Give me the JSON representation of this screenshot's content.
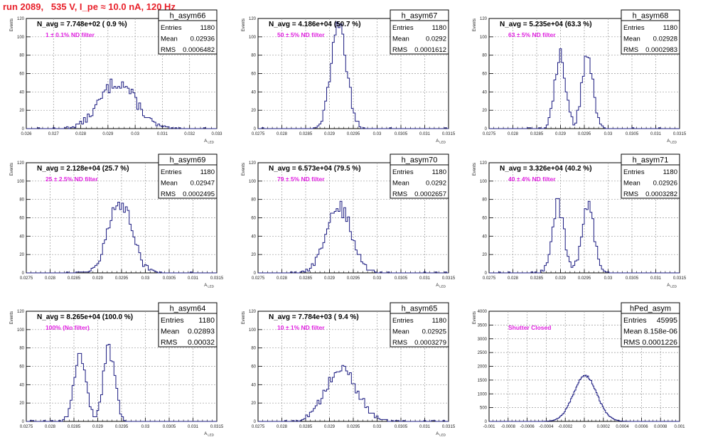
{
  "run_title": "run 2089,   535 V, I_pe ≈ 10.0 nA, 120 Hz",
  "colors": {
    "title": "#e8202a",
    "annotation": "#e020e0",
    "hist": "#1a1a80",
    "axis": "#000000",
    "grid": "#999999"
  },
  "chart_data": [
    {
      "type": "bar",
      "subtype": "histogram",
      "name": "h_asym66",
      "navg": "N_avg = 7.748e+02 ( 0.9 %)",
      "annotation": "1 ± 0.1% ND filter",
      "stats": {
        "entries_label": "Entries",
        "entries": "1180",
        "mean_label": "Mean",
        "mean": "0.02936",
        "rms_label": "RMS",
        "rms": "0.0006482"
      },
      "ylabel": "Events",
      "xlabel": "A_LED",
      "xlim": [
        0.026,
        0.033
      ],
      "ylim": [
        0,
        120
      ],
      "xticks": [
        "0.026",
        "0.027",
        "0.028",
        "0.029",
        "0.03",
        "0.031",
        "0.032",
        "0.033"
      ],
      "yticks": [
        "0",
        "20",
        "40",
        "60",
        "80",
        "100",
        "120"
      ],
      "mean": 0.02936,
      "rms": 0.0006482,
      "entries": 1180
    },
    {
      "type": "bar",
      "subtype": "histogram",
      "name": "h_asym67",
      "navg": "N_avg = 4.186e+04 (50.7 %)",
      "annotation": "50 ± 5% ND filter",
      "stats": {
        "entries_label": "Entries",
        "entries": "1180",
        "mean_label": "Mean",
        "mean": "0.0292",
        "rms_label": "RMS",
        "rms": "0.0001612"
      },
      "ylabel": "Events",
      "xlabel": "A_LED",
      "xlim": [
        0.0275,
        0.0315
      ],
      "ylim": [
        0,
        120
      ],
      "xticks": [
        "0.0275",
        "0.028",
        "0.0285",
        "0.029",
        "0.0295",
        "0.03",
        "0.0305",
        "0.031",
        "0.0315"
      ],
      "yticks": [
        "0",
        "20",
        "40",
        "60",
        "80",
        "100",
        "120"
      ],
      "mean": 0.0292,
      "rms": 0.0001612,
      "entries": 1180
    },
    {
      "type": "bar",
      "subtype": "histogram",
      "name": "h_asym68",
      "navg": "N_avg = 5.235e+04 (63.3 %)",
      "annotation": "63 ± 5% ND filter",
      "stats": {
        "entries_label": "Entries",
        "entries": "1180",
        "mean_label": "Mean",
        "mean": "0.02928",
        "rms_label": "RMS",
        "rms": "0.0002983"
      },
      "ylabel": "Events",
      "xlabel": "A_LED",
      "xlim": [
        0.0275,
        0.0315
      ],
      "ylim": [
        0,
        120
      ],
      "xticks": [
        "0.0275",
        "0.028",
        "0.0285",
        "0.029",
        "0.0295",
        "0.03",
        "0.0305",
        "0.031",
        "0.0315"
      ],
      "yticks": [
        "0",
        "20",
        "40",
        "60",
        "80",
        "100",
        "120"
      ],
      "mean": 0.02928,
      "rms": 0.0002983,
      "entries": 1180
    },
    {
      "type": "bar",
      "subtype": "histogram",
      "name": "h_asym69",
      "navg": "N_avg = 2.128e+04 (25.7 %)",
      "annotation": "25 ± 2.5% ND filter",
      "stats": {
        "entries_label": "Entries",
        "entries": "1180",
        "mean_label": "Mean",
        "mean": "0.02947",
        "rms_label": "RMS",
        "rms": "0.0002495"
      },
      "ylabel": "Events",
      "xlabel": "A_LED",
      "xlim": [
        0.0275,
        0.0315
      ],
      "ylim": [
        0,
        120
      ],
      "xticks": [
        "0.0275",
        "0.028",
        "0.0285",
        "0.029",
        "0.0295",
        "0.03",
        "0.0305",
        "0.031",
        "0.0315"
      ],
      "yticks": [
        "0",
        "20",
        "40",
        "60",
        "80",
        "100",
        "120"
      ],
      "mean": 0.02947,
      "rms": 0.0002495,
      "entries": 1180
    },
    {
      "type": "bar",
      "subtype": "histogram",
      "name": "h_asym70",
      "navg": "N_avg = 6.573e+04 (79.5 %)",
      "annotation": "79 ± 5% ND filter",
      "stats": {
        "entries_label": "Entries",
        "entries": "1180",
        "mean_label": "Mean",
        "mean": "0.0292",
        "rms_label": "RMS",
        "rms": "0.0002657"
      },
      "ylabel": "Events",
      "xlabel": "A_LED",
      "xlim": [
        0.0275,
        0.0315
      ],
      "ylim": [
        0,
        120
      ],
      "xticks": [
        "0.0275",
        "0.028",
        "0.0285",
        "0.029",
        "0.0295",
        "0.03",
        "0.0305",
        "0.031",
        "0.0315"
      ],
      "yticks": [
        "0",
        "20",
        "40",
        "60",
        "80",
        "100",
        "120"
      ],
      "mean": 0.0292,
      "rms": 0.0002657,
      "entries": 1180
    },
    {
      "type": "bar",
      "subtype": "histogram",
      "name": "h_asym71",
      "navg": "N_avg = 3.326e+04 (40.2 %)",
      "annotation": "40 ± 4% ND filter",
      "stats": {
        "entries_label": "Entries",
        "entries": "1180",
        "mean_label": "Mean",
        "mean": "0.02926",
        "rms_label": "RMS",
        "rms": "0.0003282"
      },
      "ylabel": "Events",
      "xlabel": "A_LED",
      "xlim": [
        0.0275,
        0.0315
      ],
      "ylim": [
        0,
        120
      ],
      "xticks": [
        "0.0275",
        "0.028",
        "0.0285",
        "0.029",
        "0.0295",
        "0.03",
        "0.0305",
        "0.031",
        "0.0315"
      ],
      "yticks": [
        "0",
        "20",
        "40",
        "60",
        "80",
        "100",
        "120"
      ],
      "mean": 0.02926,
      "rms": 0.0003282,
      "entries": 1180
    },
    {
      "type": "bar",
      "subtype": "histogram",
      "name": "h_asym64",
      "navg": "N_avg = 8.265e+04 (100.0 %)",
      "annotation": "100% (No filter)",
      "stats": {
        "entries_label": "Entries",
        "entries": "1180",
        "mean_label": "Mean",
        "mean": "0.02893",
        "rms_label": "RMS",
        "rms": "0.00032"
      },
      "ylabel": "Events",
      "xlabel": "A_LED",
      "xlim": [
        0.0275,
        0.0315
      ],
      "ylim": [
        0,
        120
      ],
      "xticks": [
        "0.0275",
        "0.028",
        "0.0285",
        "0.029",
        "0.0295",
        "0.03",
        "0.0305",
        "0.031",
        "0.0315"
      ],
      "yticks": [
        "0",
        "20",
        "40",
        "60",
        "80",
        "100",
        "120"
      ],
      "mean": 0.02893,
      "rms": 0.00032,
      "entries": 1180
    },
    {
      "type": "bar",
      "subtype": "histogram",
      "name": "h_asym65",
      "navg": "N_avg = 7.784e+03 ( 9.4 %)",
      "annotation": "10 ± 1% ND filter",
      "stats": {
        "entries_label": "Entries",
        "entries": "1180",
        "mean_label": "Mean",
        "mean": "0.02925",
        "rms_label": "RMS",
        "rms": "0.0003279"
      },
      "ylabel": "Events",
      "xlabel": "A_LED",
      "xlim": [
        0.0275,
        0.0315
      ],
      "ylim": [
        0,
        120
      ],
      "xticks": [
        "0.0275",
        "0.028",
        "0.0285",
        "0.029",
        "0.0295",
        "0.03",
        "0.0305",
        "0.031",
        "0.0315"
      ],
      "yticks": [
        "0",
        "20",
        "40",
        "60",
        "80",
        "100",
        "120"
      ],
      "mean": 0.02925,
      "rms": 0.0003279,
      "entries": 1180
    },
    {
      "type": "bar",
      "subtype": "histogram",
      "name": "hPed_asym",
      "navg": "",
      "annotation": "Shutter Closed",
      "stats": {
        "entries_label": "Entries",
        "entries": "45995",
        "mean_label": "Mean",
        "mean": "8.158e-06",
        "rms_label": "RMS",
        "rms": "0.0001226"
      },
      "ylabel": "Events",
      "xlabel": "",
      "xlim": [
        -0.001,
        0.001
      ],
      "ylim": [
        0,
        4000
      ],
      "xticks": [
        "-0.001",
        "-0.0008",
        "-0.0006",
        "-0.0004",
        "-0.0002",
        "0",
        "0.0002",
        "0.0004",
        "0.0006",
        "0.0008",
        "0.001"
      ],
      "yticks": [
        "0",
        "500",
        "1000",
        "1500",
        "2000",
        "2500",
        "3000",
        "3500",
        "4000"
      ],
      "mean": 8.158e-06,
      "rms": 0.0001226,
      "entries": 45995
    }
  ]
}
